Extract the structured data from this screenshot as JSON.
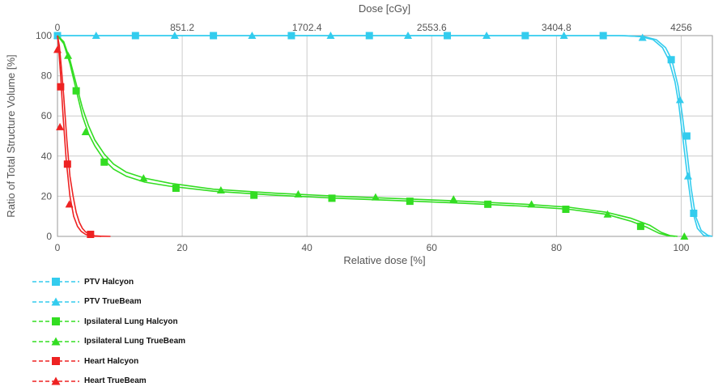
{
  "chart_data": {
    "type": "line",
    "xlabel": "Relative dose [%]",
    "ylabel": "Ratio of Total Structure Volume [%]",
    "x2label": "Dose [cGy]",
    "xlim": [
      0,
      105
    ],
    "ylim": [
      0,
      100
    ],
    "x_ticks": [
      "0",
      "20",
      "40",
      "60",
      "80",
      "100"
    ],
    "x_tick_values": [
      0,
      20,
      40,
      60,
      80,
      100
    ],
    "y_ticks": [
      "0",
      "20",
      "40",
      "60",
      "80",
      "100"
    ],
    "y_tick_values": [
      0,
      20,
      40,
      60,
      80,
      100
    ],
    "x2_ticks": [
      "0",
      "851.2",
      "1702.4",
      "2553.6",
      "3404.8",
      "4256"
    ],
    "x2_tick_values": [
      0,
      20,
      40,
      60,
      80,
      100
    ],
    "grid": true,
    "legend_position": "bottom-left",
    "series": [
      {
        "name": "PTV Halcyon",
        "color": "#33ccee",
        "marker": "square",
        "x": [
          0,
          90,
          94,
          96,
          97.5,
          98.5,
          99.5,
          100.2,
          101,
          101.6,
          102.3,
          103.2,
          104.3,
          105
        ],
        "y": [
          100,
          100,
          99.5,
          98,
          94,
          88,
          75,
          60,
          40,
          24,
          10,
          3,
          0.5,
          0
        ],
        "marker_x": [
          0,
          12.5,
          25,
          37.5,
          50,
          62.5,
          75,
          87.5,
          98.4,
          100.9,
          102
        ],
        "marker_y": [
          100,
          100,
          100,
          100,
          100,
          100,
          100,
          100,
          88,
          50,
          11.5
        ]
      },
      {
        "name": "PTV TrueBeam",
        "color": "#33ccee",
        "marker": "triangle",
        "x": [
          0,
          91,
          93.5,
          95.5,
          97,
          98,
          99,
          99.6,
          100.3,
          101,
          101.7,
          102.6,
          103.6,
          104.5
        ],
        "y": [
          100,
          100,
          99.5,
          98,
          94,
          88,
          77,
          66,
          48,
          30,
          14,
          4,
          0.5,
          0
        ],
        "marker_x": [
          0,
          6.2,
          18.8,
          31.2,
          43.8,
          56.2,
          68.8,
          81.2,
          93.8,
          99.8,
          101.1
        ],
        "marker_y": [
          100,
          100,
          100,
          100,
          100,
          100,
          100,
          100,
          99,
          68,
          30
        ]
      },
      {
        "name": "Ipsilateral Lung Halcyon",
        "color": "#33dd22",
        "marker": "square",
        "x": [
          0,
          1,
          2,
          3,
          4,
          5,
          6,
          7.5,
          9,
          11,
          14,
          18,
          25,
          35,
          45,
          55,
          65,
          75,
          82,
          88,
          92,
          94.5,
          96.5,
          98,
          99
        ],
        "y": [
          100,
          96,
          86,
          73,
          60,
          51,
          45,
          38,
          33.5,
          30,
          27,
          25,
          22.5,
          20.5,
          19,
          17.8,
          16.5,
          15,
          13.5,
          11,
          7.5,
          4.5,
          1.5,
          0.3,
          0
        ],
        "marker_x": [
          3,
          7.5,
          19,
          31.5,
          44,
          56.5,
          69,
          81.5,
          93.5
        ],
        "marker_y": [
          72.5,
          37,
          24,
          20.5,
          19,
          17.5,
          16,
          13.5,
          5
        ]
      },
      {
        "name": "Ipsilateral Lung TrueBeam",
        "color": "#33dd22",
        "marker": "triangle",
        "x": [
          0,
          1,
          2,
          3,
          4,
          5,
          6,
          7.5,
          9,
          11,
          14,
          18,
          25,
          35,
          45,
          55,
          65,
          75,
          82,
          88,
          92,
          95,
          96.8,
          98.2,
          99.4
        ],
        "y": [
          100,
          97,
          88,
          76,
          64,
          55,
          48,
          41,
          36,
          32,
          29,
          26.5,
          23.5,
          21.5,
          20,
          18.8,
          17.5,
          16,
          14.5,
          12,
          9,
          5.5,
          2,
          0.4,
          0
        ],
        "marker_x": [
          1.7,
          4.5,
          13.8,
          26.2,
          38.6,
          51,
          63.5,
          76,
          88.2,
          100.5
        ],
        "marker_y": [
          90,
          52,
          29,
          23,
          21,
          19.5,
          18.5,
          16,
          11,
          0
        ]
      },
      {
        "name": "Heart Halcyon",
        "color": "#ee2222",
        "marker": "square",
        "x": [
          0,
          0.3,
          0.6,
          1,
          1.5,
          2,
          2.5,
          3,
          3.5,
          4,
          4.5,
          5,
          5.5,
          6,
          7,
          8.5
        ],
        "y": [
          100,
          95,
          85,
          70,
          48,
          30,
          20,
          12,
          7,
          4,
          2.2,
          1.2,
          0.6,
          0.3,
          0.1,
          0
        ],
        "marker_x": [
          0.5,
          1.6,
          5.3
        ],
        "marker_y": [
          74.5,
          36,
          1
        ]
      },
      {
        "name": "Heart TrueBeam",
        "color": "#ee2222",
        "marker": "triangle",
        "x": [
          0,
          0.2,
          0.5,
          0.9,
          1.4,
          2,
          2.6,
          3.2,
          3.8,
          4.5,
          5.2,
          6,
          7
        ],
        "y": [
          100,
          94,
          80,
          60,
          38,
          20,
          10,
          5,
          2.5,
          1,
          0.4,
          0.1,
          0
        ],
        "marker_x": [
          0,
          0.4,
          1.9
        ],
        "marker_y": [
          93,
          54.5,
          16
        ]
      }
    ]
  }
}
